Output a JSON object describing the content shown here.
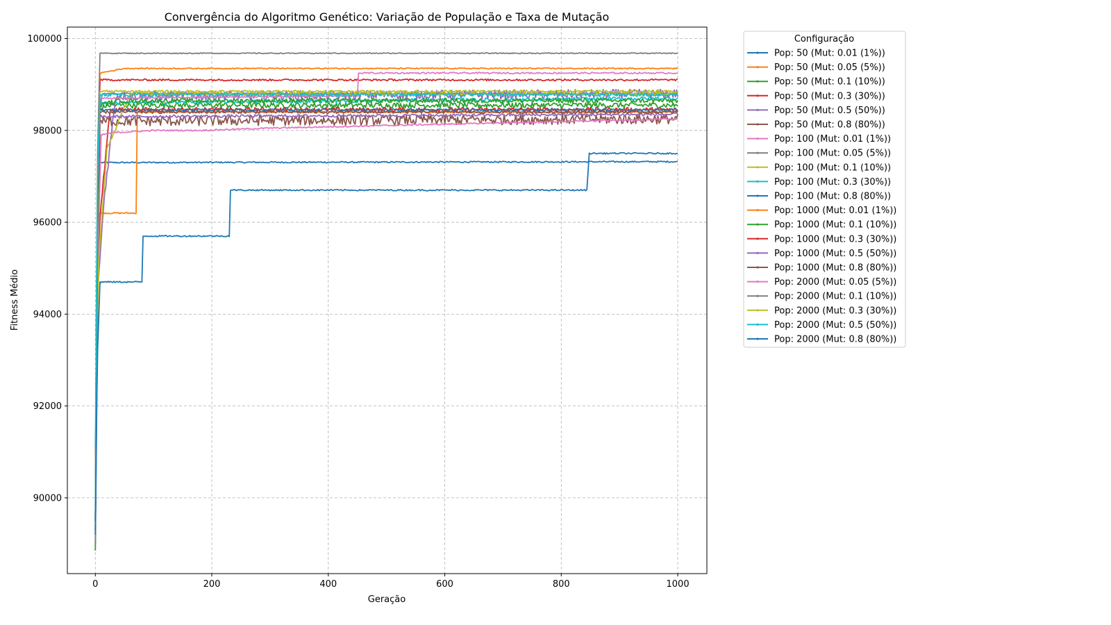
{
  "chart_data": {
    "type": "line",
    "title": "Convergência do Algoritmo Genético: Variação de População e Taxa de Mutação",
    "xlabel": "Geração",
    "ylabel": "Fitness Médio",
    "xlim": [
      -48,
      1050
    ],
    "ylim": [
      88350,
      100250
    ],
    "x_ticks": [
      0,
      200,
      400,
      600,
      800,
      1000
    ],
    "y_ticks": [
      90000,
      92000,
      94000,
      96000,
      98000,
      100000
    ],
    "grid": true,
    "legend": {
      "title": "Configuração",
      "placement": "outside-top-right"
    },
    "series": [
      {
        "name": "Pop: 50 (Mut: 0.01 (1%))",
        "color": "#1f77b4",
        "noise": 15,
        "x": [
          0,
          3,
          6,
          10,
          1000
        ],
        "y": [
          89000,
          92500,
          97300,
          97300,
          97320
        ]
      },
      {
        "name": "Pop: 50 (Mut: 0.05 (5%))",
        "color": "#ff7f0e",
        "noise": 15,
        "x": [
          0,
          4,
          8,
          70,
          72,
          1000
        ],
        "y": [
          89500,
          94000,
          96200,
          96200,
          98400,
          98400
        ]
      },
      {
        "name": "Pop: 50 (Mut: 0.1 (10%))",
        "color": "#2ca02c",
        "noise": 60,
        "x": [
          0,
          3,
          6,
          20,
          1000
        ],
        "y": [
          88850,
          94800,
          98450,
          98550,
          98550
        ]
      },
      {
        "name": "Pop: 50 (Mut: 0.3 (30%))",
        "color": "#d62728",
        "noise": 50,
        "x": [
          0,
          3,
          8,
          25,
          1000
        ],
        "y": [
          89500,
          95000,
          96100,
          98450,
          98450
        ]
      },
      {
        "name": "Pop: 50 (Mut: 0.5 (50%))",
        "color": "#9467bd",
        "noise": 100,
        "x": [
          0,
          4,
          15,
          35,
          1000
        ],
        "y": [
          89200,
          94500,
          96500,
          98750,
          98800
        ]
      },
      {
        "name": "Pop: 50 (Mut: 0.8 (80%))",
        "color": "#8c564b",
        "noise": 110,
        "x": [
          0,
          3,
          8,
          1000
        ],
        "y": [
          89300,
          94500,
          98200,
          98250
        ]
      },
      {
        "name": "Pop: 100 (Mut: 0.01 (1%))",
        "color": "#e377c2",
        "noise": 15,
        "x": [
          0,
          5,
          10,
          30,
          100,
          180,
          300,
          1000
        ],
        "y": [
          90600,
          95500,
          97900,
          97950,
          98000,
          98000,
          98050,
          98250
        ]
      },
      {
        "name": "Pop: 100 (Mut: 0.05 (5%))",
        "color": "#7f7f7f",
        "noise": 15,
        "x": [
          0,
          4,
          8,
          12,
          1000
        ],
        "y": [
          89000,
          96500,
          98500,
          98800,
          98800
        ]
      },
      {
        "name": "Pop: 100 (Mut: 0.1 (10%))",
        "color": "#bcbd22",
        "noise": 40,
        "x": [
          0,
          5,
          20,
          60,
          1000
        ],
        "y": [
          91000,
          95000,
          97600,
          98800,
          98800
        ]
      },
      {
        "name": "Pop: 100 (Mut: 0.3 (30%))",
        "color": "#17becf",
        "noise": 40,
        "x": [
          0,
          4,
          8,
          1000
        ],
        "y": [
          91100,
          96000,
          98600,
          98700
        ]
      },
      {
        "name": "Pop: 100 (Mut: 0.8 (80%))",
        "color": "#1f77b4",
        "noise": 20,
        "x": [
          0,
          3,
          6,
          1000
        ],
        "y": [
          89300,
          94500,
          98450,
          98450
        ]
      },
      {
        "name": "Pop: 1000 (Mut: 0.01 (1%))",
        "color": "#ff7f0e",
        "noise": 12,
        "x": [
          0,
          3,
          8,
          50,
          1000
        ],
        "y": [
          89500,
          96000,
          99250,
          99350,
          99350
        ]
      },
      {
        "name": "Pop: 1000 (Mut: 0.1 (10%))",
        "color": "#2ca02c",
        "noise": 50,
        "x": [
          0,
          3,
          8,
          40,
          1000
        ],
        "y": [
          89300,
          95000,
          98550,
          98650,
          98650
        ]
      },
      {
        "name": "Pop: 1000 (Mut: 0.3 (30%))",
        "color": "#d62728",
        "noise": 20,
        "x": [
          0,
          3,
          8,
          1000
        ],
        "y": [
          89500,
          96500,
          99100,
          99100
        ]
      },
      {
        "name": "Pop: 1000 (Mut: 0.5 (50%))",
        "color": "#9467bd",
        "noise": 30,
        "x": [
          0,
          3,
          8,
          1000
        ],
        "y": [
          89500,
          96000,
          98300,
          98350
        ]
      },
      {
        "name": "Pop: 1000 (Mut: 0.8 (80%))",
        "color": "#8c564b",
        "noise": 30,
        "x": [
          0,
          3,
          8,
          1000
        ],
        "y": [
          89500,
          96000,
          98400,
          98400
        ]
      },
      {
        "name": "Pop: 2000 (Mut: 0.05 (5%))",
        "color": "#e377c2",
        "noise": 15,
        "x": [
          0,
          3,
          8,
          450,
          452,
          1000
        ],
        "y": [
          89800,
          96500,
          98700,
          98750,
          99250,
          99250
        ]
      },
      {
        "name": "Pop: 2000 (Mut: 0.1 (10%))",
        "color": "#7f7f7f",
        "noise": 10,
        "x": [
          0,
          3,
          8,
          1000
        ],
        "y": [
          89500,
          97000,
          99680,
          99680
        ]
      },
      {
        "name": "Pop: 2000 (Mut: 0.3 (30%))",
        "color": "#bcbd22",
        "noise": 25,
        "x": [
          0,
          3,
          8,
          1000
        ],
        "y": [
          89500,
          96500,
          98850,
          98850
        ]
      },
      {
        "name": "Pop: 2000 (Mut: 0.5 (50%))",
        "color": "#17becf",
        "noise": 40,
        "x": [
          0,
          3,
          8,
          1000
        ],
        "y": [
          89500,
          96500,
          98780,
          98780
        ]
      },
      {
        "name": "Pop: 2000 (Mut: 0.8 (80%))",
        "color": "#1f77b4",
        "noise": 15,
        "x": [
          0,
          3,
          8,
          80,
          82,
          230,
          232,
          845,
          847,
          1000
        ],
        "y": [
          89200,
          92850,
          94700,
          94700,
          95700,
          95700,
          96700,
          96700,
          97500,
          97500
        ]
      }
    ]
  }
}
